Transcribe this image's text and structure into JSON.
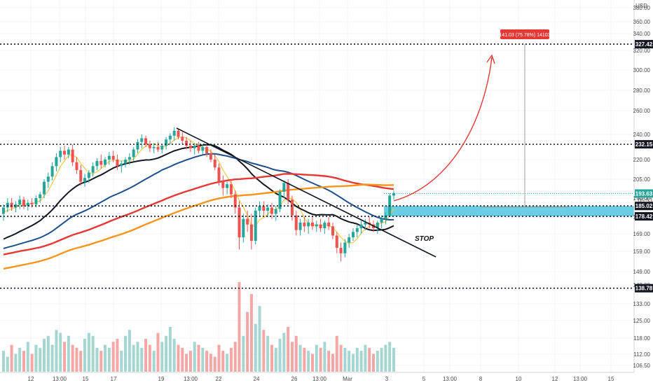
{
  "chart_data": {
    "type": "candlestick",
    "currency": "USD",
    "y_ticks": [
      "380.00",
      "360.00",
      "340.00",
      "320.00",
      "300.00",
      "280.00",
      "260.00",
      "240.00",
      "220.00",
      "205.00",
      "190.00",
      "178.00",
      "169.00",
      "159.00",
      "149.00",
      "140.00",
      "133.00",
      "125.00",
      "118.00",
      "112.00",
      "106.50"
    ],
    "x_ticks": [
      "12",
      "13:00",
      "15",
      "17",
      "19",
      "13:00",
      "22",
      "24",
      "26",
      "13:00",
      "Mar",
      "3",
      "5",
      "13:00",
      "8",
      "10",
      "12",
      "13:00",
      "15"
    ],
    "levels": [
      {
        "value": "327.42",
        "color": "#131722"
      },
      {
        "value": "232.15",
        "color": "#131722"
      },
      {
        "value": "193.63",
        "color": "#26a69a"
      },
      {
        "value": "185.02",
        "color": "#131722"
      },
      {
        "value": "178.42",
        "color": "#131722"
      },
      {
        "value": "138.78",
        "color": "#131722"
      }
    ],
    "zone": {
      "from": 178.42,
      "to": 185.02,
      "color": "#5bc8e0"
    },
    "target_label": "141.03 (75.78%) 14103",
    "stop_label": "STOP",
    "countdown": "05:53",
    "colors": {
      "up": "#26a69a",
      "down": "#ef5350",
      "vol_up": "#a5d6d1",
      "vol_down": "#f4a7a5",
      "ma_fast": "#f2c94c",
      "ma_mid": "#131722",
      "ma_blue": "#1e4f8a",
      "ma_red": "#e53935",
      "ma_orange": "#f5951d"
    },
    "candles": [
      {
        "o": 180,
        "h": 186,
        "l": 176,
        "c": 184
      },
      {
        "o": 184,
        "h": 190,
        "l": 181,
        "c": 187
      },
      {
        "o": 187,
        "h": 190,
        "l": 182,
        "c": 184
      },
      {
        "o": 184,
        "h": 188,
        "l": 181,
        "c": 186
      },
      {
        "o": 186,
        "h": 192,
        "l": 183,
        "c": 189
      },
      {
        "o": 189,
        "h": 191,
        "l": 183,
        "c": 185
      },
      {
        "o": 185,
        "h": 189,
        "l": 182,
        "c": 187
      },
      {
        "o": 187,
        "h": 190,
        "l": 184,
        "c": 186
      },
      {
        "o": 186,
        "h": 192,
        "l": 184,
        "c": 190
      },
      {
        "o": 190,
        "h": 195,
        "l": 187,
        "c": 193
      },
      {
        "o": 193,
        "h": 205,
        "l": 190,
        "c": 203
      },
      {
        "o": 203,
        "h": 210,
        "l": 198,
        "c": 207
      },
      {
        "o": 207,
        "h": 218,
        "l": 204,
        "c": 215
      },
      {
        "o": 215,
        "h": 225,
        "l": 211,
        "c": 222
      },
      {
        "o": 222,
        "h": 230,
        "l": 218,
        "c": 227
      },
      {
        "o": 227,
        "h": 231,
        "l": 220,
        "c": 224
      },
      {
        "o": 224,
        "h": 230,
        "l": 221,
        "c": 228
      },
      {
        "o": 228,
        "h": 232,
        "l": 215,
        "c": 218
      },
      {
        "o": 218,
        "h": 222,
        "l": 209,
        "c": 212
      },
      {
        "o": 212,
        "h": 216,
        "l": 200,
        "c": 203
      },
      {
        "o": 203,
        "h": 209,
        "l": 199,
        "c": 206
      },
      {
        "o": 206,
        "h": 212,
        "l": 202,
        "c": 210
      },
      {
        "o": 210,
        "h": 218,
        "l": 207,
        "c": 215
      },
      {
        "o": 215,
        "h": 221,
        "l": 212,
        "c": 219
      },
      {
        "o": 219,
        "h": 224,
        "l": 213,
        "c": 216
      },
      {
        "o": 216,
        "h": 222,
        "l": 214,
        "c": 220
      },
      {
        "o": 220,
        "h": 226,
        "l": 216,
        "c": 223
      },
      {
        "o": 223,
        "h": 227,
        "l": 218,
        "c": 220
      },
      {
        "o": 220,
        "h": 224,
        "l": 212,
        "c": 215
      },
      {
        "o": 215,
        "h": 219,
        "l": 210,
        "c": 217
      },
      {
        "o": 217,
        "h": 222,
        "l": 214,
        "c": 220
      },
      {
        "o": 220,
        "h": 225,
        "l": 216,
        "c": 222
      },
      {
        "o": 222,
        "h": 230,
        "l": 219,
        "c": 228
      },
      {
        "o": 228,
        "h": 236,
        "l": 225,
        "c": 234
      },
      {
        "o": 234,
        "h": 240,
        "l": 229,
        "c": 237
      },
      {
        "o": 237,
        "h": 239,
        "l": 230,
        "c": 232
      },
      {
        "o": 232,
        "h": 235,
        "l": 226,
        "c": 229
      },
      {
        "o": 229,
        "h": 233,
        "l": 225,
        "c": 230
      },
      {
        "o": 230,
        "h": 234,
        "l": 226,
        "c": 228
      },
      {
        "o": 228,
        "h": 232,
        "l": 225,
        "c": 231
      },
      {
        "o": 231,
        "h": 238,
        "l": 228,
        "c": 236
      },
      {
        "o": 236,
        "h": 241,
        "l": 232,
        "c": 239
      },
      {
        "o": 239,
        "h": 246,
        "l": 235,
        "c": 243
      },
      {
        "o": 243,
        "h": 245,
        "l": 236,
        "c": 238
      },
      {
        "o": 238,
        "h": 242,
        "l": 232,
        "c": 235
      },
      {
        "o": 235,
        "h": 238,
        "l": 228,
        "c": 231
      },
      {
        "o": 231,
        "h": 235,
        "l": 226,
        "c": 229
      },
      {
        "o": 229,
        "h": 233,
        "l": 224,
        "c": 231
      },
      {
        "o": 231,
        "h": 234,
        "l": 225,
        "c": 227
      },
      {
        "o": 227,
        "h": 232,
        "l": 224,
        "c": 230
      },
      {
        "o": 230,
        "h": 233,
        "l": 222,
        "c": 225
      },
      {
        "o": 225,
        "h": 228,
        "l": 218,
        "c": 220
      },
      {
        "o": 220,
        "h": 224,
        "l": 212,
        "c": 214
      },
      {
        "o": 214,
        "h": 217,
        "l": 200,
        "c": 203
      },
      {
        "o": 203,
        "h": 208,
        "l": 192,
        "c": 198
      },
      {
        "o": 198,
        "h": 203,
        "l": 193,
        "c": 201
      },
      {
        "o": 201,
        "h": 205,
        "l": 190,
        "c": 193
      },
      {
        "o": 193,
        "h": 196,
        "l": 180,
        "c": 184
      },
      {
        "o": 184,
        "h": 188,
        "l": 160,
        "c": 167
      },
      {
        "o": 167,
        "h": 180,
        "l": 164,
        "c": 177
      },
      {
        "o": 177,
        "h": 182,
        "l": 170,
        "c": 174
      },
      {
        "o": 174,
        "h": 180,
        "l": 160,
        "c": 165
      },
      {
        "o": 165,
        "h": 184,
        "l": 163,
        "c": 182
      },
      {
        "o": 182,
        "h": 188,
        "l": 178,
        "c": 185
      },
      {
        "o": 185,
        "h": 188,
        "l": 179,
        "c": 182
      },
      {
        "o": 182,
        "h": 186,
        "l": 178,
        "c": 184
      },
      {
        "o": 184,
        "h": 187,
        "l": 177,
        "c": 180
      },
      {
        "o": 180,
        "h": 185,
        "l": 176,
        "c": 183
      },
      {
        "o": 183,
        "h": 197,
        "l": 181,
        "c": 195
      },
      {
        "o": 195,
        "h": 204,
        "l": 190,
        "c": 202
      },
      {
        "o": 202,
        "h": 205,
        "l": 186,
        "c": 189
      },
      {
        "o": 189,
        "h": 192,
        "l": 176,
        "c": 179
      },
      {
        "o": 179,
        "h": 182,
        "l": 168,
        "c": 171
      },
      {
        "o": 171,
        "h": 177,
        "l": 168,
        "c": 175
      },
      {
        "o": 175,
        "h": 178,
        "l": 170,
        "c": 173
      },
      {
        "o": 173,
        "h": 177,
        "l": 169,
        "c": 175
      },
      {
        "o": 175,
        "h": 178,
        "l": 171,
        "c": 173
      },
      {
        "o": 173,
        "h": 176,
        "l": 170,
        "c": 174
      },
      {
        "o": 174,
        "h": 177,
        "l": 170,
        "c": 172
      },
      {
        "o": 172,
        "h": 176,
        "l": 169,
        "c": 175
      },
      {
        "o": 175,
        "h": 178,
        "l": 171,
        "c": 173
      },
      {
        "o": 173,
        "h": 175,
        "l": 166,
        "c": 168
      },
      {
        "o": 168,
        "h": 170,
        "l": 158,
        "c": 161
      },
      {
        "o": 161,
        "h": 164,
        "l": 154,
        "c": 158
      },
      {
        "o": 158,
        "h": 166,
        "l": 156,
        "c": 164
      },
      {
        "o": 164,
        "h": 169,
        "l": 161,
        "c": 167
      },
      {
        "o": 167,
        "h": 172,
        "l": 165,
        "c": 170
      },
      {
        "o": 170,
        "h": 174,
        "l": 167,
        "c": 172
      },
      {
        "o": 172,
        "h": 176,
        "l": 169,
        "c": 174
      },
      {
        "o": 174,
        "h": 177,
        "l": 171,
        "c": 175
      },
      {
        "o": 175,
        "h": 178,
        "l": 172,
        "c": 174
      },
      {
        "o": 174,
        "h": 176,
        "l": 170,
        "c": 172
      },
      {
        "o": 172,
        "h": 176,
        "l": 169,
        "c": 175
      },
      {
        "o": 175,
        "h": 179,
        "l": 172,
        "c": 177
      },
      {
        "o": 177,
        "h": 181,
        "l": 174,
        "c": 179
      },
      {
        "o": 179,
        "h": 194,
        "l": 178,
        "c": 192
      },
      {
        "o": 192,
        "h": 196,
        "l": 189,
        "c": 194
      }
    ],
    "volume": [
      7,
      5,
      9,
      6,
      8,
      7,
      10,
      6,
      9,
      8,
      11,
      12,
      9,
      14,
      13,
      10,
      12,
      9,
      8,
      7,
      11,
      13,
      12,
      8,
      7,
      9,
      8,
      10,
      11,
      7,
      12,
      14,
      9,
      10,
      8,
      11,
      9,
      7,
      13,
      10,
      12,
      15,
      11,
      9,
      8,
      6,
      7,
      10,
      9,
      8,
      7,
      6,
      5,
      9,
      7,
      6,
      8,
      10,
      30,
      12,
      20,
      26,
      16,
      22,
      14,
      12,
      9,
      8,
      11,
      13,
      15,
      10,
      12,
      9,
      8,
      7,
      6,
      9,
      8,
      10,
      7,
      6,
      12,
      9,
      8,
      7,
      6,
      8,
      7,
      9,
      8,
      6,
      7,
      8,
      9,
      10,
      8
    ]
  }
}
